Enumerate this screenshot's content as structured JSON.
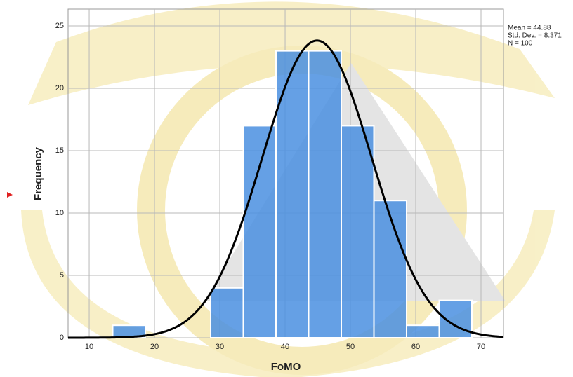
{
  "chart_data": {
    "type": "histogram",
    "x_label": "FoMO",
    "y_label": "Frequency",
    "bins": [
      13.6,
      18.6,
      23.6,
      28.6,
      33.6,
      38.6,
      43.6,
      48.6,
      53.6,
      58.6,
      63.6,
      68.6
    ],
    "values": [
      1,
      0,
      0,
      4,
      17,
      23,
      23,
      17,
      11,
      1,
      3
    ],
    "color": "#4a8fe0",
    "curve_color": "#000000",
    "stats": [
      {
        "value": 44.88,
        "label": "Mean = 44.88"
      },
      {
        "value": 8.371,
        "label": "Std. Dev. = 8.371"
      },
      {
        "value": 100,
        "label": "N = 100"
      }
    ],
    "xlim": [
      6.77,
      73.44
    ],
    "ylim": [
      0,
      26.35
    ],
    "xticks": [
      10,
      20,
      30,
      40,
      50,
      60,
      70
    ],
    "yticks": [
      0,
      5,
      10,
      15,
      20,
      25
    ],
    "grid": true
  }
}
